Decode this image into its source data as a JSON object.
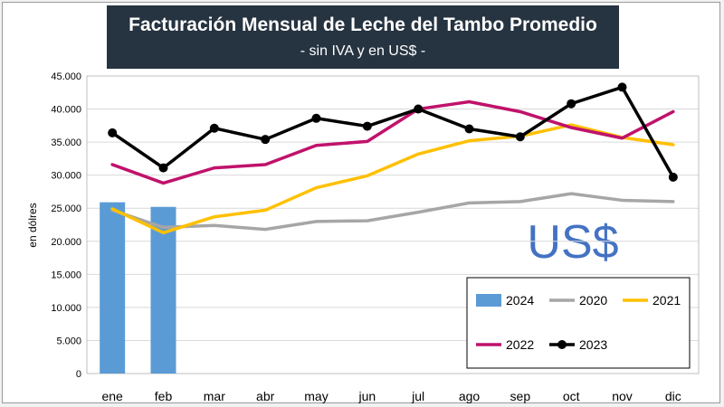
{
  "chart_data": {
    "type": "line",
    "title": "Facturación Mensual de Leche del Tambo Promedio",
    "subtitle": "- sin IVA y en US$ -",
    "ylabel": "en dólres",
    "xlabel": "",
    "annotation": "US$",
    "ylim": [
      0,
      45000
    ],
    "yticks": [
      "0",
      "5.000",
      "10.000",
      "15.000",
      "20.000",
      "25.000",
      "30.000",
      "35.000",
      "40.000",
      "45.000"
    ],
    "ytick_values": [
      0,
      5000,
      10000,
      15000,
      20000,
      25000,
      30000,
      35000,
      40000,
      45000
    ],
    "categories": [
      "ene",
      "feb",
      "mar",
      "abr",
      "may",
      "jun",
      "jul",
      "ago",
      "sep",
      "oct",
      "nov",
      "dic"
    ],
    "grid": "horizontal",
    "legend_position": "bottom-right",
    "series": [
      {
        "name": "2024",
        "type": "bar",
        "color": "#5b9bd5",
        "values": [
          25900,
          25200,
          null,
          null,
          null,
          null,
          null,
          null,
          null,
          null,
          null,
          null
        ]
      },
      {
        "name": "2020",
        "type": "line",
        "color": "#a6a6a6",
        "values": [
          24700,
          22100,
          22400,
          21800,
          23000,
          23100,
          24400,
          25800,
          26000,
          27200,
          26200,
          26000
        ]
      },
      {
        "name": "2021",
        "type": "line",
        "color": "#ffc000",
        "values": [
          24900,
          21300,
          23700,
          24700,
          28100,
          29900,
          33200,
          35200,
          35900,
          37600,
          35700,
          34600
        ]
      },
      {
        "name": "2022",
        "type": "line",
        "color": "#c0126b",
        "values": [
          31600,
          28800,
          31100,
          31600,
          34500,
          35100,
          40000,
          41100,
          39600,
          37200,
          35600,
          39600
        ]
      },
      {
        "name": "2023",
        "type": "line",
        "color": "#000000",
        "marker": "circle",
        "values": [
          36400,
          31100,
          37100,
          35400,
          38600,
          37400,
          40000,
          37000,
          35800,
          40800,
          43300,
          29700
        ]
      }
    ]
  }
}
